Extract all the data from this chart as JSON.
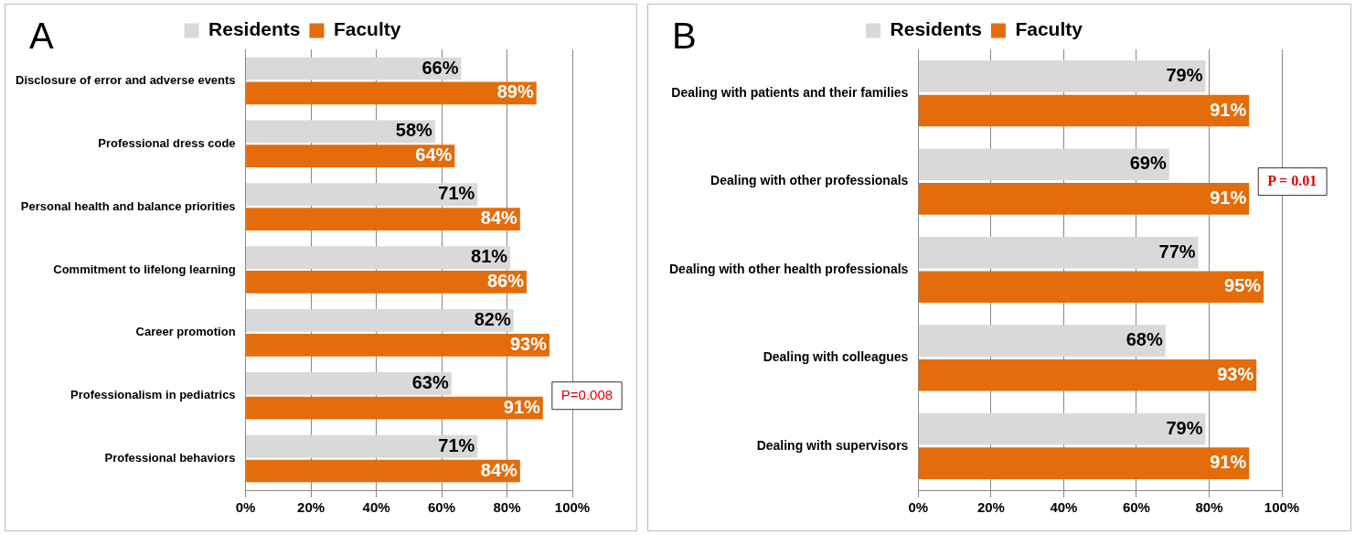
{
  "chart_data": [
    {
      "type": "bar",
      "orientation": "horizontal",
      "title": "A",
      "legend": "top",
      "grid": "x",
      "categories": [
        "Disclosure of error and adverse events",
        "Professional dress code",
        "Personal health and balance priorities",
        "Commitment to lifelong learning",
        "Career promotion",
        "Professionalism in pediatrics",
        "Professional behaviors"
      ],
      "series": [
        {
          "name": "Residents",
          "color": "#d9d9d9",
          "values": [
            66,
            58,
            71,
            81,
            82,
            63,
            71
          ],
          "value_labels": [
            "66%",
            "58%",
            "71%",
            "81%",
            "82%",
            "63%",
            "71%"
          ]
        },
        {
          "name": "Faculty",
          "color": "#e46c0a",
          "values": [
            89,
            64,
            84,
            86,
            93,
            91,
            84
          ],
          "value_labels": [
            "89%",
            "64%",
            "84%",
            "86%",
            "93%",
            "91%",
            "84%"
          ]
        }
      ],
      "xlim": [
        0,
        100
      ],
      "xticks": [
        {
          "value": 0,
          "label": "0%"
        },
        {
          "value": 20,
          "label": "20%"
        },
        {
          "value": 40,
          "label": "40%"
        },
        {
          "value": 60,
          "label": "60%"
        },
        {
          "value": 80,
          "label": "80%"
        },
        {
          "value": 100,
          "label": "100%"
        }
      ],
      "annotations": [
        {
          "text": "P=0.008",
          "x": 91,
          "y": "Professionalism in pediatrics"
        }
      ]
    },
    {
      "type": "bar",
      "orientation": "horizontal",
      "title": "B",
      "legend": "top",
      "grid": "x",
      "categories": [
        "Dealing with patients and their families",
        "Dealing with other professionals",
        "Dealing with other health professionals",
        "Dealing with colleagues",
        "Dealing with supervisors"
      ],
      "series": [
        {
          "name": "Residents",
          "color": "#d9d9d9",
          "values": [
            79,
            69,
            77,
            68,
            79
          ],
          "value_labels": [
            "79%",
            "69%",
            "77%",
            "68%",
            "79%"
          ]
        },
        {
          "name": "Faculty",
          "color": "#e46c0a",
          "values": [
            91,
            91,
            95,
            93,
            91
          ],
          "value_labels": [
            "91%",
            "91%",
            "95%",
            "93%",
            "91%"
          ]
        }
      ],
      "xlim": [
        0,
        100
      ],
      "xticks": [
        {
          "value": 0,
          "label": "0%"
        },
        {
          "value": 20,
          "label": "20%"
        },
        {
          "value": 40,
          "label": "40%"
        },
        {
          "value": 60,
          "label": "60%"
        },
        {
          "value": 80,
          "label": "80%"
        },
        {
          "value": 100,
          "label": "100%"
        }
      ],
      "annotations": [
        {
          "text": "P = 0.01",
          "x": 91,
          "y": "Dealing with other professionals"
        }
      ]
    }
  ]
}
